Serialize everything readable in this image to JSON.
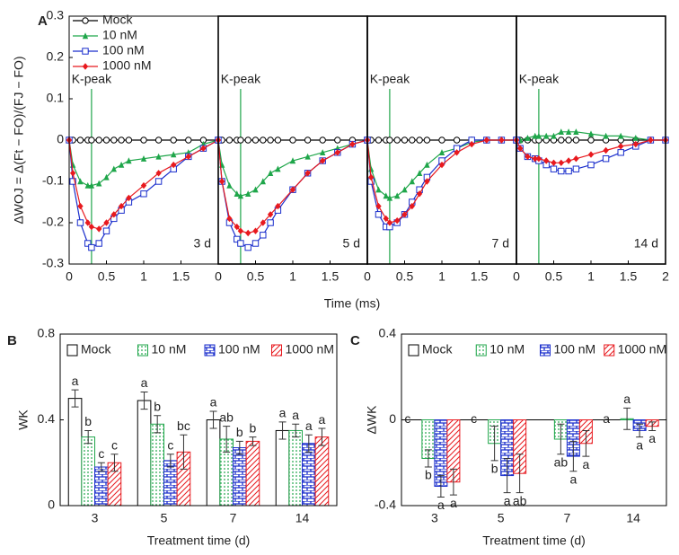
{
  "chart_data": [
    {
      "type": "line",
      "panel_label": "A",
      "subplot_label": "3 d",
      "ylabel": "ΔWOJ = Δ(Ft − FO)/(FJ − FO)",
      "xlabel": "Time (ms)",
      "legend": "upper left",
      "x": [
        0,
        0.05,
        0.15,
        0.25,
        0.3,
        0.4,
        0.5,
        0.6,
        0.7,
        0.8,
        1.0,
        1.2,
        1.4,
        1.6,
        1.8,
        2
      ],
      "xlim": [
        0,
        2
      ],
      "xticks": [
        0,
        0.5,
        1,
        1.5
      ],
      "ylim": [
        -0.3,
        0.3
      ],
      "yticks": [
        -0.3,
        -0.2,
        -0.1,
        0,
        0.1,
        0.2,
        0.3
      ],
      "annotation": {
        "text": "K-peak",
        "x": 0.3,
        "color": "#1fa64a"
      },
      "series": [
        {
          "name": "Mock",
          "color": "#000000",
          "marker": "circle",
          "values": [
            0,
            0,
            0,
            0,
            0,
            0,
            0,
            0,
            0,
            0,
            0,
            0,
            0,
            0,
            0,
            0
          ]
        },
        {
          "name": "10 nM",
          "color": "#1fa64a",
          "marker": "triangle",
          "values": [
            0,
            -0.06,
            -0.1,
            -0.11,
            -0.11,
            -0.105,
            -0.09,
            -0.07,
            -0.06,
            -0.05,
            -0.045,
            -0.04,
            -0.035,
            -0.03,
            -0.01,
            0
          ]
        },
        {
          "name": "100 nM",
          "color": "#1a2ecc",
          "marker": "square",
          "values": [
            0,
            -0.1,
            -0.2,
            -0.25,
            -0.26,
            -0.25,
            -0.22,
            -0.19,
            -0.17,
            -0.15,
            -0.13,
            -0.1,
            -0.07,
            -0.04,
            -0.02,
            0
          ]
        },
        {
          "name": "1000 nM",
          "color": "#e8191e",
          "marker": "diamond",
          "values": [
            0,
            -0.08,
            -0.16,
            -0.2,
            -0.21,
            -0.215,
            -0.2,
            -0.18,
            -0.16,
            -0.14,
            -0.11,
            -0.08,
            -0.06,
            -0.04,
            -0.02,
            0
          ]
        }
      ]
    },
    {
      "type": "line",
      "subplot_label": "5 d",
      "x": [
        0,
        0.05,
        0.15,
        0.25,
        0.3,
        0.4,
        0.5,
        0.6,
        0.7,
        0.8,
        1.0,
        1.2,
        1.4,
        1.6,
        1.8,
        2
      ],
      "xlim": [
        0,
        2
      ],
      "xticks": [
        0,
        0.5,
        1,
        1.5
      ],
      "ylim": [
        -0.3,
        0.3
      ],
      "annotation": {
        "text": "K-peak",
        "x": 0.3,
        "color": "#1fa64a"
      },
      "series": [
        {
          "color": "#000000",
          "marker": "circle",
          "values": [
            0,
            0,
            0,
            0,
            0,
            0,
            0,
            0,
            0,
            0,
            0,
            0,
            0,
            0,
            0,
            0
          ]
        },
        {
          "color": "#1fa64a",
          "marker": "triangle",
          "values": [
            0,
            -0.06,
            -0.11,
            -0.13,
            -0.135,
            -0.13,
            -0.12,
            -0.1,
            -0.08,
            -0.07,
            -0.05,
            -0.04,
            -0.03,
            -0.02,
            -0.01,
            0
          ]
        },
        {
          "color": "#1a2ecc",
          "marker": "square",
          "values": [
            0,
            -0.1,
            -0.2,
            -0.24,
            -0.25,
            -0.26,
            -0.25,
            -0.23,
            -0.2,
            -0.17,
            -0.12,
            -0.08,
            -0.05,
            -0.03,
            -0.01,
            0
          ]
        },
        {
          "color": "#e8191e",
          "marker": "diamond",
          "values": [
            0,
            -0.1,
            -0.19,
            -0.21,
            -0.22,
            -0.225,
            -0.22,
            -0.2,
            -0.18,
            -0.16,
            -0.12,
            -0.08,
            -0.05,
            -0.03,
            -0.01,
            0
          ]
        }
      ]
    },
    {
      "type": "line",
      "subplot_label": "7 d",
      "x": [
        0,
        0.05,
        0.15,
        0.25,
        0.3,
        0.4,
        0.5,
        0.6,
        0.7,
        0.8,
        1.0,
        1.2,
        1.4,
        1.6,
        1.8,
        2
      ],
      "xlim": [
        0,
        2
      ],
      "xticks": [
        0,
        0.5,
        1,
        1.5
      ],
      "ylim": [
        -0.3,
        0.3
      ],
      "annotation": {
        "text": "K-peak",
        "x": 0.3,
        "color": "#1fa64a"
      },
      "series": [
        {
          "color": "#000000",
          "marker": "circle",
          "values": [
            0,
            0,
            0,
            0,
            0,
            0,
            0,
            0,
            0,
            0,
            0,
            0,
            0,
            0,
            0,
            0
          ]
        },
        {
          "color": "#1fa64a",
          "marker": "triangle",
          "values": [
            0,
            -0.07,
            -0.12,
            -0.135,
            -0.14,
            -0.135,
            -0.12,
            -0.1,
            -0.08,
            -0.06,
            -0.03,
            -0.02,
            -0.005,
            0,
            0,
            0
          ]
        },
        {
          "color": "#1a2ecc",
          "marker": "square",
          "values": [
            0,
            -0.1,
            -0.18,
            -0.21,
            -0.21,
            -0.2,
            -0.18,
            -0.15,
            -0.12,
            -0.09,
            -0.05,
            -0.02,
            0,
            0,
            0,
            0
          ]
        },
        {
          "color": "#e8191e",
          "marker": "diamond",
          "values": [
            0,
            -0.09,
            -0.16,
            -0.19,
            -0.2,
            -0.195,
            -0.18,
            -0.16,
            -0.13,
            -0.1,
            -0.06,
            -0.03,
            -0.01,
            0,
            0,
            0
          ]
        }
      ]
    },
    {
      "type": "line",
      "subplot_label": "14 d",
      "x": [
        0,
        0.05,
        0.15,
        0.25,
        0.3,
        0.4,
        0.5,
        0.6,
        0.7,
        0.8,
        1.0,
        1.2,
        1.4,
        1.6,
        1.8,
        2
      ],
      "xlim": [
        0,
        2
      ],
      "xticks": [
        0,
        0.5,
        1,
        1.5,
        2
      ],
      "ylim": [
        -0.3,
        0.3
      ],
      "annotation": {
        "text": "K-peak",
        "x": 0.3,
        "color": "#1fa64a"
      },
      "series": [
        {
          "color": "#000000",
          "marker": "circle",
          "values": [
            0,
            0,
            0,
            0,
            0,
            0,
            0,
            0,
            0,
            0,
            0,
            0,
            0,
            0,
            0,
            0
          ]
        },
        {
          "color": "#1fa64a",
          "marker": "triangle",
          "values": [
            0,
            0,
            0.005,
            0.01,
            0.01,
            0.01,
            0.01,
            0.02,
            0.02,
            0.02,
            0.015,
            0.01,
            0.01,
            0.005,
            0,
            0
          ]
        },
        {
          "color": "#1a2ecc",
          "marker": "square",
          "values": [
            0,
            -0.02,
            -0.04,
            -0.045,
            -0.05,
            -0.06,
            -0.07,
            -0.075,
            -0.075,
            -0.07,
            -0.06,
            -0.045,
            -0.03,
            -0.015,
            0,
            0
          ]
        },
        {
          "color": "#e8191e",
          "marker": "diamond",
          "values": [
            0,
            -0.02,
            -0.04,
            -0.045,
            -0.045,
            -0.05,
            -0.055,
            -0.055,
            -0.05,
            -0.045,
            -0.035,
            -0.025,
            -0.015,
            -0.01,
            0,
            0
          ]
        }
      ]
    },
    {
      "type": "bar",
      "panel_label": "B",
      "ylabel": "WK",
      "xlabel": "Treatment time (d)",
      "legend": "top",
      "categories": [
        "3",
        "5",
        "7",
        "14"
      ],
      "ylim": [
        0,
        0.8
      ],
      "yticks": [
        0,
        0.4,
        0.8
      ],
      "series": [
        {
          "name": "Mock",
          "color": "#000000",
          "pattern": "none",
          "values": [
            0.5,
            0.49,
            0.4,
            0.35
          ],
          "errors": [
            0.04,
            0.04,
            0.04,
            0.04
          ],
          "letters": [
            "a",
            "a",
            "a",
            "a"
          ]
        },
        {
          "name": "10 nM",
          "color": "#1fa64a",
          "pattern": "dots",
          "values": [
            0.32,
            0.38,
            0.31,
            0.35
          ],
          "errors": [
            0.03,
            0.04,
            0.06,
            0.03
          ],
          "letters": [
            "b",
            "b",
            "ab",
            "a"
          ]
        },
        {
          "name": "100 nM",
          "color": "#1a2ecc",
          "pattern": "brick",
          "values": [
            0.18,
            0.21,
            0.27,
            0.29
          ],
          "errors": [
            0.02,
            0.03,
            0.03,
            0.04
          ],
          "letters": [
            "c",
            "c",
            "b",
            "a"
          ]
        },
        {
          "name": "1000 nM",
          "color": "#e8191e",
          "pattern": "wave",
          "values": [
            0.2,
            0.25,
            0.3,
            0.32
          ],
          "errors": [
            0.04,
            0.08,
            0.02,
            0.04
          ],
          "letters": [
            "c",
            "bc",
            "b",
            "a"
          ]
        }
      ]
    },
    {
      "type": "bar",
      "panel_label": "C",
      "ylabel": "ΔWK",
      "xlabel": "Treatment time (d)",
      "legend": "top",
      "categories": [
        "3",
        "5",
        "7",
        "14"
      ],
      "ylim": [
        -0.4,
        0.4
      ],
      "yticks": [
        -0.4,
        0,
        0.4
      ],
      "series": [
        {
          "name": "Mock",
          "color": "#000000",
          "pattern": "none",
          "values": [
            0,
            0,
            0,
            0
          ],
          "errors": [
            0,
            0,
            0,
            0
          ],
          "letters": [
            "c",
            "c",
            null,
            "a"
          ]
        },
        {
          "name": "10 nM",
          "color": "#1fa64a",
          "pattern": "dots",
          "values": [
            -0.18,
            -0.11,
            -0.09,
            0.005
          ],
          "errors": [
            0.04,
            0.08,
            0.07,
            0.05
          ],
          "letters": [
            "b",
            "b",
            "ab",
            "a"
          ]
        },
        {
          "name": "100 nM",
          "color": "#1a2ecc",
          "pattern": "brick",
          "values": [
            -0.31,
            -0.26,
            -0.17,
            -0.05
          ],
          "errors": [
            0.05,
            0.08,
            0.07,
            0.03
          ],
          "letters": [
            "a",
            "a",
            "a",
            "a"
          ]
        },
        {
          "name": "1000 nM",
          "color": "#e8191e",
          "pattern": "wave",
          "values": [
            -0.29,
            -0.25,
            -0.11,
            -0.03
          ],
          "errors": [
            0.06,
            0.09,
            0.06,
            0.02
          ],
          "letters": [
            "a",
            "ab",
            "a",
            "a"
          ]
        }
      ]
    }
  ]
}
